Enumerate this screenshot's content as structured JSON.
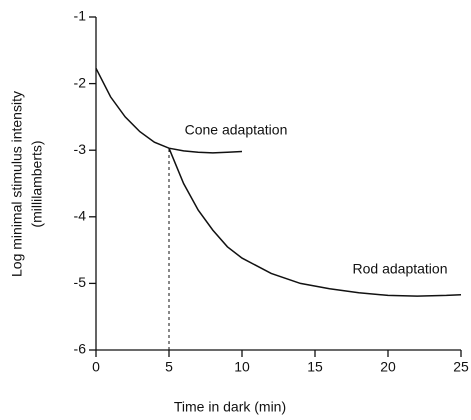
{
  "chart_data": {
    "type": "line",
    "x_label": "Time in dark (min)",
    "y_label": [
      "Log minimal stimulus intensity",
      "(millilamberts)"
    ],
    "xlim": [
      0,
      25
    ],
    "xticks": [
      0,
      5,
      10,
      15,
      20,
      25
    ],
    "ylim": [
      -6,
      -1
    ],
    "yticks": [
      -6,
      -5,
      -4,
      -3,
      -2,
      -1
    ],
    "reference_line": {
      "x": 5
    },
    "series": [
      {
        "name": "Cone adaptation",
        "color": "#111111",
        "x": [
          0,
          1,
          2,
          3,
          4,
          5,
          6,
          7,
          8,
          9,
          10
        ],
        "values": [
          -1.77,
          -2.2,
          -2.5,
          -2.72,
          -2.88,
          -2.97,
          -3.01,
          -3.03,
          -3.04,
          -3.03,
          -3.02
        ]
      },
      {
        "name": "Rod adaptation",
        "color": "#111111",
        "x": [
          5,
          6,
          7,
          8,
          9,
          10,
          12,
          14,
          16,
          18,
          20,
          22,
          24,
          25
        ],
        "values": [
          -2.97,
          -3.5,
          -3.9,
          -4.2,
          -4.45,
          -4.62,
          -4.85,
          -5.0,
          -5.08,
          -5.14,
          -5.18,
          -5.19,
          -5.18,
          -5.17
        ]
      }
    ]
  }
}
